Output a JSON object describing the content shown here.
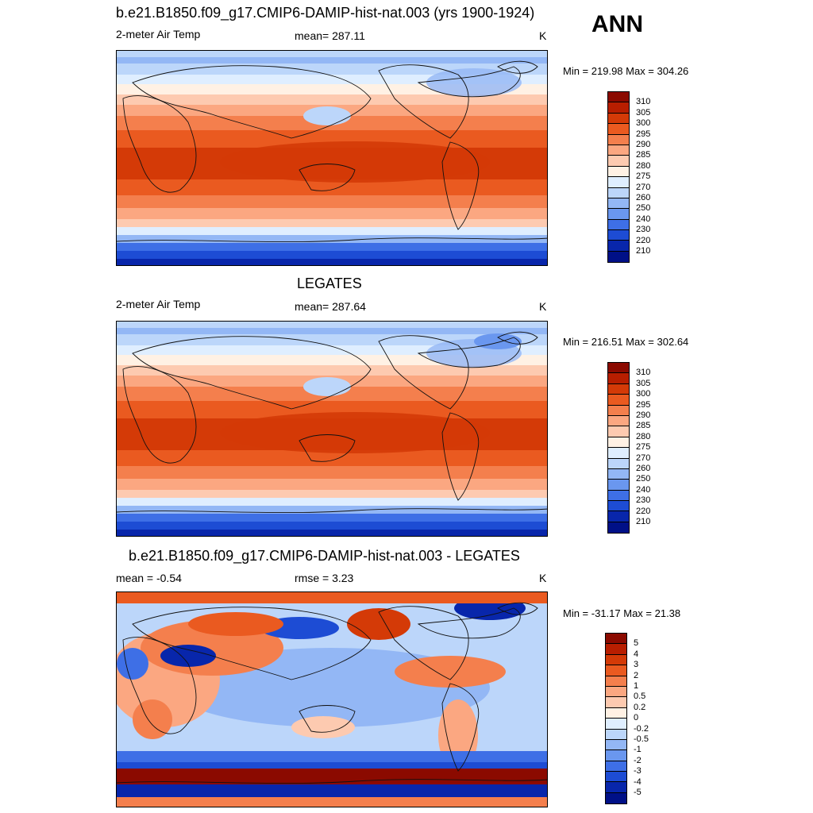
{
  "header": {
    "season": "ANN"
  },
  "panels": [
    {
      "title": "b.e21.B1850.f09_g17.CMIP6-DAMIP-hist-nat.003 (yrs 1900-1924)",
      "left": "2-meter Air Temp",
      "center": "mean= 287.11",
      "right": "K",
      "minmax": "Min = 219.98 Max = 304.26",
      "kind": "abs"
    },
    {
      "title": "LEGATES",
      "left": "2-meter Air Temp",
      "center": "mean= 287.64",
      "right": "K",
      "minmax": "Min = 216.51 Max = 302.64",
      "kind": "abs"
    },
    {
      "title": "b.e21.B1850.f09_g17.CMIP6-DAMIP-hist-nat.003 - LEGATES",
      "left": "mean =  -0.54",
      "center": "rmse =   3.23",
      "right": "K",
      "minmax": "Min = -31.17 Max =  21.38",
      "kind": "diff"
    }
  ],
  "colorbars": {
    "abs": {
      "labels": [
        "310",
        "305",
        "300",
        "295",
        "290",
        "285",
        "280",
        "275",
        "270",
        "260",
        "250",
        "240",
        "230",
        "220",
        "210"
      ],
      "colors": [
        "#8b0a00",
        "#b81e00",
        "#d43a07",
        "#ea5a20",
        "#f47f4d",
        "#fba781",
        "#fdcab0",
        "#fff1e4",
        "#dfeeff",
        "#bcd6fa",
        "#93b7f5",
        "#6a97ef",
        "#3e6fe6",
        "#1d4cd4",
        "#0826ab",
        "#001087"
      ]
    },
    "diff": {
      "labels": [
        "5",
        "4",
        "3",
        "2",
        "1",
        "0.5",
        "0.2",
        "0",
        "-0.2",
        "-0.5",
        "-1",
        "-2",
        "-3",
        "-4",
        "-5"
      ],
      "colors": [
        "#8b0a00",
        "#b81e00",
        "#d43a07",
        "#ea5a20",
        "#f47f4d",
        "#fba781",
        "#fdcab0",
        "#fff1e4",
        "#dfeeff",
        "#bcd6fa",
        "#93b7f5",
        "#6a97ef",
        "#3e6fe6",
        "#1d4cd4",
        "#0826ab",
        "#001087"
      ]
    }
  }
}
